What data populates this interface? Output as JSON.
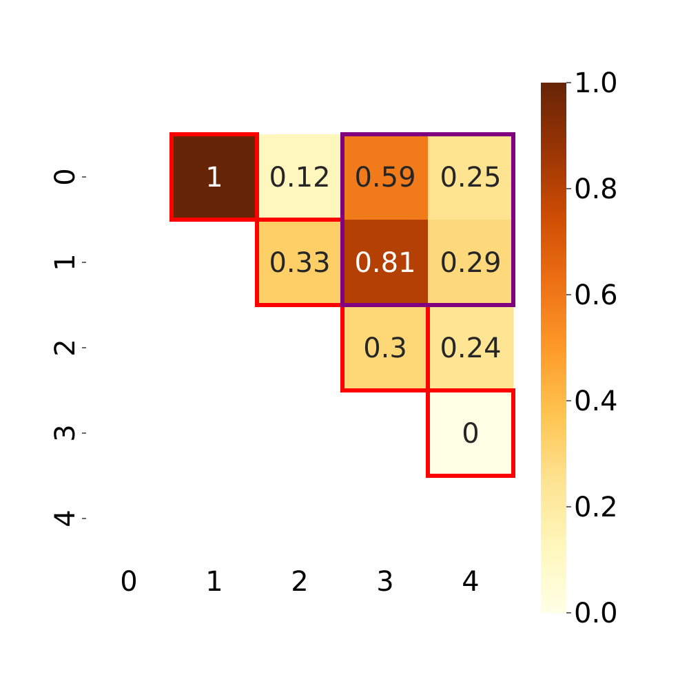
{
  "chart_data": {
    "type": "heatmap",
    "colormap": "YlOrBr",
    "x_tick_labels": [
      "0",
      "1",
      "2",
      "3",
      "4"
    ],
    "y_tick_labels": [
      "0",
      "1",
      "2",
      "3",
      "4"
    ],
    "cells": [
      {
        "row": 0,
        "col": 1,
        "value": 1.0,
        "label": "1"
      },
      {
        "row": 0,
        "col": 2,
        "value": 0.12,
        "label": "0.12"
      },
      {
        "row": 0,
        "col": 3,
        "value": 0.59,
        "label": "0.59"
      },
      {
        "row": 0,
        "col": 4,
        "value": 0.25,
        "label": "0.25"
      },
      {
        "row": 1,
        "col": 2,
        "value": 0.33,
        "label": "0.33"
      },
      {
        "row": 1,
        "col": 3,
        "value": 0.81,
        "label": "0.81"
      },
      {
        "row": 1,
        "col": 4,
        "value": 0.29,
        "label": "0.29"
      },
      {
        "row": 2,
        "col": 3,
        "value": 0.3,
        "label": "0.3"
      },
      {
        "row": 2,
        "col": 4,
        "value": 0.24,
        "label": "0.24"
      },
      {
        "row": 3,
        "col": 4,
        "value": 0.0,
        "label": "0"
      }
    ],
    "highlight_groups": [
      {
        "color": "#ff0000",
        "cells": [
          [
            0,
            1
          ],
          [
            1,
            2
          ],
          [
            2,
            3
          ],
          [
            3,
            4
          ]
        ]
      },
      {
        "color": "#800080",
        "cells": [
          [
            0,
            3
          ],
          [
            0,
            4
          ],
          [
            1,
            3
          ],
          [
            1,
            4
          ]
        ]
      }
    ],
    "colorbar": {
      "range": [
        0.0,
        1.0
      ],
      "tick_values": [
        0.0,
        0.2,
        0.4,
        0.6,
        0.8,
        1.0
      ],
      "tick_labels": [
        "0.0",
        "0.2",
        "0.4",
        "0.6",
        "0.8",
        "1.0"
      ]
    }
  }
}
